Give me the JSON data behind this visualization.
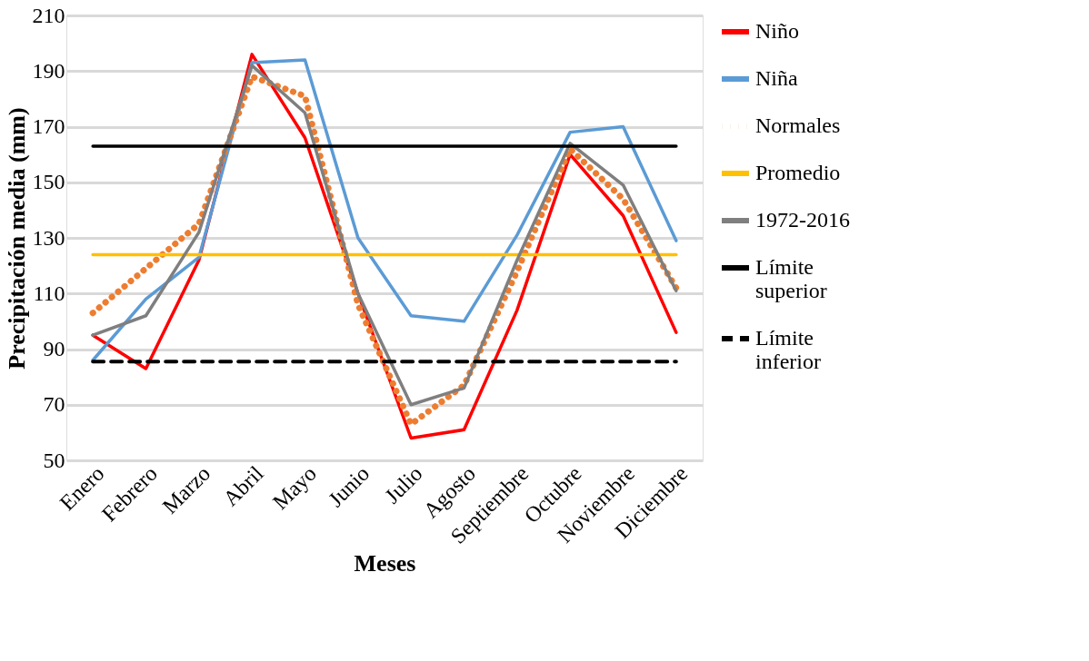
{
  "chart_data": {
    "type": "line",
    "xlabel": "Meses",
    "ylabel": "Precipitación media (mm)",
    "categories": [
      "Enero",
      "Febrero",
      "Marzo",
      "Abril",
      "Mayo",
      "Junio",
      "Julio",
      "Agosto",
      "Septiembre",
      "Octubre",
      "Noviembre",
      "Diciembre"
    ],
    "ylim": [
      50,
      210
    ],
    "yticks": [
      50,
      70,
      90,
      110,
      130,
      150,
      170,
      190,
      210
    ],
    "grid": "y",
    "legend": "right",
    "marker": "none",
    "series": [
      {
        "name": "Niño",
        "color": "#ff0000",
        "line_style": "solid",
        "values": [
          95,
          83,
          122,
          196,
          166,
          110,
          58,
          61,
          104,
          160,
          138,
          96
        ]
      },
      {
        "name": "Niña",
        "color": "#5b9bd5",
        "line_style": "solid",
        "values": [
          86,
          108,
          123,
          193,
          194,
          130,
          102,
          100,
          131,
          168,
          170,
          129
        ]
      },
      {
        "name": "Normales",
        "color": "#ed7d31",
        "line_style": "dotted",
        "values": [
          103,
          119,
          135,
          188,
          181,
          106,
          63,
          77,
          118,
          162,
          144,
          112
        ]
      },
      {
        "name": "Promedio",
        "color": "#ffc000",
        "line_style": "solid",
        "values": [
          124,
          124,
          124,
          124,
          124,
          124,
          124,
          124,
          124,
          124,
          124,
          124
        ]
      },
      {
        "name": "1972-2016",
        "color": "#7f7f7f",
        "line_style": "solid",
        "values": [
          95,
          102,
          132,
          192,
          175,
          110,
          70,
          76,
          122,
          164,
          149,
          111
        ]
      },
      {
        "name": "Límite superior",
        "color": "#000000",
        "line_style": "solid",
        "values": [
          163,
          163,
          163,
          163,
          163,
          163,
          163,
          163,
          163,
          163,
          163,
          163
        ]
      },
      {
        "name": "Límite inferior",
        "color": "#000000",
        "line_style": "dashed",
        "values": [
          85.5,
          85.5,
          85.5,
          85.5,
          85.5,
          85.5,
          85.5,
          85.5,
          85.5,
          85.5,
          85.5,
          85.5
        ]
      }
    ]
  }
}
